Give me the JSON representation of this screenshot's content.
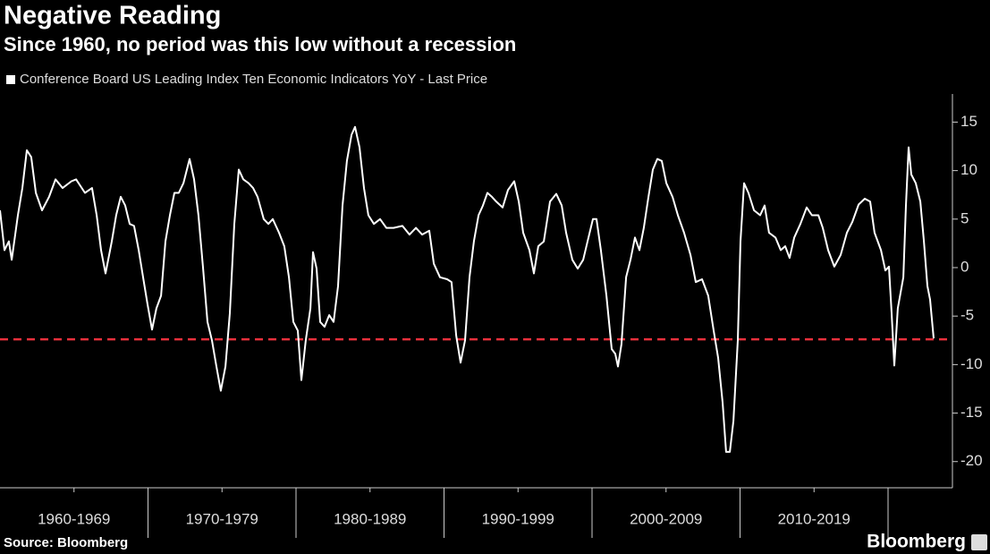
{
  "chart_data": {
    "type": "line",
    "title": "Negative Reading",
    "subtitle": "Since 1960, no period was this low without a recession",
    "source": "Source: Bloomberg",
    "brand": "Bloomberg",
    "background": "#000000",
    "series": [
      {
        "name": "Conference Board US Leading Index Ten Economic Indicators YoY - Last Price",
        "color": "#ffffff",
        "values": [
          5.9,
          1.8,
          2.7,
          0.8,
          5.4,
          8.2,
          12.1,
          11.4,
          7.7,
          5.9,
          7.3,
          9.1,
          8.2,
          8.9,
          9.1,
          7.7,
          8.2,
          5.4,
          1.8,
          -0.6,
          2.7,
          5.4,
          7.3,
          6.4,
          4.5,
          4.3,
          1.8,
          -1.0,
          -3.8,
          -6.4,
          -4.2,
          -2.9,
          2.7,
          5.4,
          7.7,
          7.7,
          8.7,
          11.2,
          9.1,
          5.4,
          -0.1,
          -5.6,
          -7.5,
          -10.2,
          -12.7,
          -10.2,
          -4.7,
          4.5,
          10.1,
          9.1,
          8.7,
          8.2,
          7.3,
          5.0,
          4.5,
          5.0,
          3.6,
          2.2,
          -1.0,
          -5.6,
          -6.5,
          -11.6,
          -7.5,
          -4.2,
          1.6,
          -0.1,
          -5.6,
          -6.1,
          -4.9,
          -5.6,
          -1.9,
          6.4,
          11.0,
          13.7,
          14.5,
          12.4,
          8.2,
          5.4,
          4.5,
          5.0,
          4.1,
          4.1,
          4.3,
          3.4,
          4.1,
          3.4,
          3.8,
          0.4,
          -1.0,
          -1.2,
          -1.5,
          -7.0,
          -9.8,
          -7.5,
          -1.0,
          2.7,
          5.4,
          6.4,
          7.7,
          7.3,
          6.8,
          6.2,
          8.0,
          8.9,
          6.8,
          3.6,
          1.8,
          -0.6,
          2.2,
          2.7,
          6.8,
          7.6,
          6.4,
          3.6,
          0.8,
          -0.1,
          0.8,
          2.7,
          5.0,
          5.0,
          1.8,
          -2.9,
          -8.4,
          -8.9,
          -10.2,
          -7.9,
          -1.0,
          0.8,
          3.1,
          1.8,
          4.1,
          7.3,
          10.1,
          11.2,
          11.0,
          8.7,
          7.3,
          5.4,
          3.6,
          1.3,
          -1.5,
          -1.2,
          -2.9,
          -6.5,
          -9.3,
          -13.9,
          -19.0,
          -19.0,
          -15.8,
          -7.5,
          2.7,
          8.7,
          7.7,
          5.9,
          5.4,
          6.4,
          3.6,
          3.1,
          1.8,
          2.2,
          1.0,
          3.1,
          4.5,
          6.2,
          5.4,
          5.4,
          4.1,
          1.8,
          0.1,
          1.3,
          3.6,
          4.7,
          6.5,
          7.1,
          6.8,
          3.6,
          1.8,
          -0.3,
          0.1,
          -4.7,
          -10.1,
          -4.2,
          -1.0,
          6.4,
          12.4,
          9.6,
          8.7,
          6.8,
          2.7,
          -1.9,
          -3.3,
          -7.3
        ]
      }
    ],
    "x": [
      1960.0,
      1960.3,
      1960.6,
      1960.79,
      1961.21,
      1961.51,
      1961.81,
      1962.11,
      1962.42,
      1962.84,
      1963.32,
      1963.75,
      1964.23,
      1964.83,
      1965.14,
      1965.74,
      1966.22,
      1966.53,
      1966.83,
      1967.13,
      1967.55,
      1967.85,
      1968.16,
      1968.46,
      1968.76,
      1969.06,
      1969.37,
      1969.67,
      1969.97,
      1970.27,
      1970.57,
      1970.88,
      1971.18,
      1971.48,
      1971.78,
      1972.08,
      1972.39,
      1972.81,
      1973.11,
      1973.41,
      1973.72,
      1974.02,
      1974.32,
      1974.62,
      1974.92,
      1975.23,
      1975.53,
      1975.83,
      1976.13,
      1976.44,
      1976.8,
      1977.1,
      1977.4,
      1977.82,
      1978.13,
      1978.43,
      1978.85,
      1979.21,
      1979.52,
      1979.82,
      1980.12,
      1980.36,
      1980.66,
      1980.97,
      1981.15,
      1981.39,
      1981.63,
      1981.93,
      1982.24,
      1982.54,
      1982.84,
      1983.14,
      1983.44,
      1983.75,
      1983.99,
      1984.29,
      1984.59,
      1984.89,
      1985.26,
      1985.68,
      1986.1,
      1986.59,
      1987.19,
      1987.67,
      1988.1,
      1988.52,
      1989.0,
      1989.31,
      1989.73,
      1990.21,
      1990.51,
      1990.82,
      1991.12,
      1991.42,
      1991.72,
      1992.02,
      1992.33,
      1992.63,
      1992.93,
      1993.23,
      1993.53,
      1993.96,
      1994.32,
      1994.74,
      1995.05,
      1995.35,
      1995.77,
      1996.07,
      1996.37,
      1996.74,
      1997.16,
      1997.58,
      1997.95,
      1998.25,
      1998.67,
      1999.03,
      1999.4,
      1999.7,
      2000.06,
      2000.3,
      2000.6,
      2000.97,
      2001.33,
      2001.57,
      2001.75,
      2001.99,
      2002.3,
      2002.6,
      2002.9,
      2003.2,
      2003.5,
      2003.81,
      2004.11,
      2004.41,
      2004.71,
      2005.02,
      2005.44,
      2005.8,
      2006.22,
      2006.65,
      2007.01,
      2007.43,
      2007.85,
      2008.22,
      2008.52,
      2008.82,
      2009.06,
      2009.31,
      2009.55,
      2009.85,
      2010.03,
      2010.27,
      2010.57,
      2010.94,
      2011.36,
      2011.66,
      2011.96,
      2012.39,
      2012.75,
      2013.05,
      2013.35,
      2013.66,
      2014.08,
      2014.5,
      2014.86,
      2015.29,
      2015.59,
      2015.95,
      2016.37,
      2016.8,
      2017.22,
      2017.58,
      2018.01,
      2018.43,
      2018.79,
      2019.09,
      2019.52,
      2019.82,
      2020.06,
      2020.24,
      2020.42,
      2020.66,
      2021.03,
      2021.21,
      2021.39,
      2021.57,
      2021.87,
      2022.18,
      2022.42,
      2022.66,
      2022.84,
      2023.08
    ],
    "xlim": [
      1960,
      2024.35
    ],
    "xticks": [
      {
        "value": 1965,
        "label": "1960-1969"
      },
      {
        "value": 1975,
        "label": "1970-1979"
      },
      {
        "value": 1985,
        "label": "1980-1989"
      },
      {
        "value": 1995,
        "label": "1990-1999"
      },
      {
        "value": 2005,
        "label": "2000-2009"
      },
      {
        "value": 2015,
        "label": "2010-2019"
      }
    ],
    "xdividers": [
      1970,
      1980,
      1990,
      2000,
      2010,
      2020
    ],
    "ylim": [
      -22.7,
      17.9
    ],
    "yticks": [
      15,
      10,
      5,
      0,
      -5,
      -10,
      -15,
      -20
    ],
    "yaxis_side": "right",
    "reference_line": {
      "value": -7.4,
      "color": "#e8303c"
    }
  }
}
